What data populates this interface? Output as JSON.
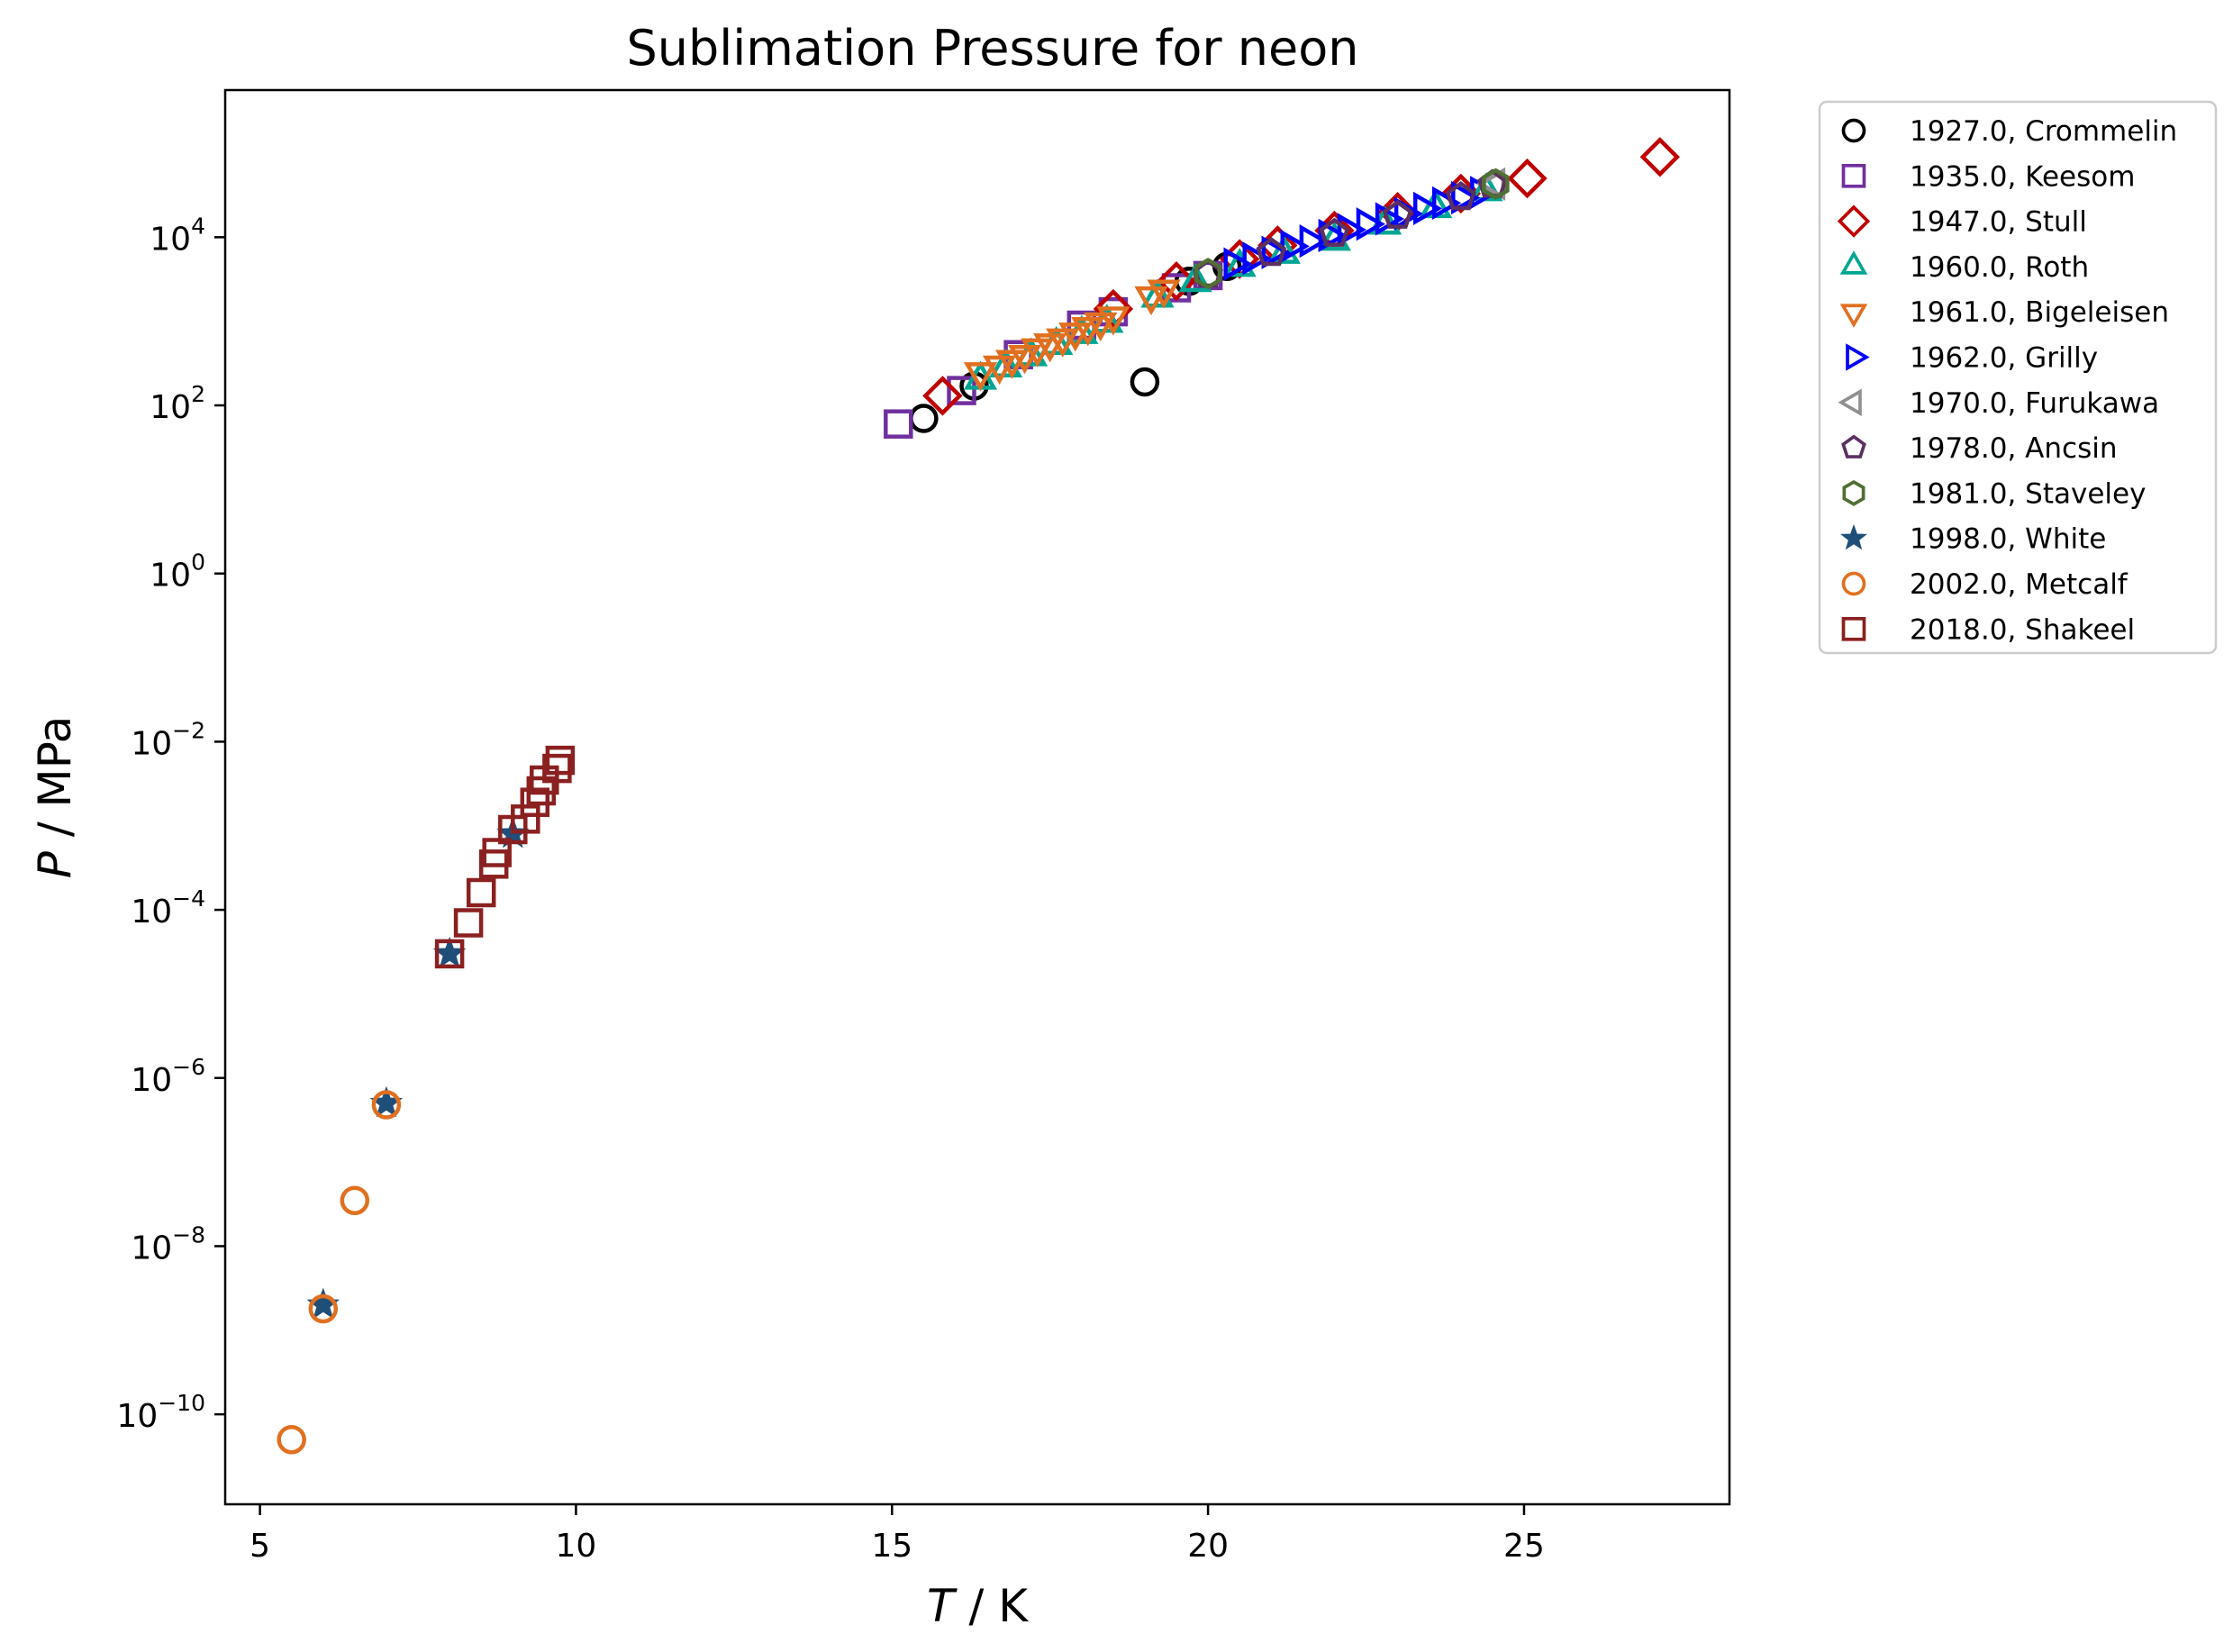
{
  "chart_data": {
    "type": "scatter",
    "title": "Sublimation Pressure for neon",
    "xlabel_var": "T",
    "xlabel_unit": " / K",
    "ylabel_var": "P",
    "ylabel_unit": " / MPa",
    "xlim": [
      4.45,
      28.25
    ],
    "ylim_exponent": [
      -11.07,
      5.75
    ],
    "yscale": "log",
    "grid": false,
    "legend_position": "outside-right",
    "x_ticks": [
      5,
      10,
      15,
      20,
      25
    ],
    "x_tick_labels": [
      "5",
      "10",
      "15",
      "20",
      "25"
    ],
    "y_ticks": [
      -10,
      -8,
      -6,
      -4,
      -2,
      0,
      2,
      4
    ],
    "y_tick_labels": [
      {
        "base": "10",
        "exp": "−10"
      },
      {
        "base": "10",
        "exp": "−8"
      },
      {
        "base": "10",
        "exp": "−6"
      },
      {
        "base": "10",
        "exp": "−4"
      },
      {
        "base": "10",
        "exp": "−2"
      },
      {
        "base": "10",
        "exp": "0"
      },
      {
        "base": "10",
        "exp": "2"
      },
      {
        "base": "10",
        "exp": "4"
      }
    ],
    "series": [
      {
        "name": "1927.0, Crommelin",
        "marker": "circle",
        "color": "#000000",
        "points": [
          [
            15.5,
            70
          ],
          [
            16.3,
            170
          ],
          [
            19.0,
            190
          ],
          [
            19.7,
            3000
          ],
          [
            20.3,
            4500
          ]
        ]
      },
      {
        "name": "1935.0, Keesom",
        "marker": "square",
        "color": "#7030a0",
        "points": [
          [
            15.1,
            60
          ],
          [
            16.1,
            150
          ],
          [
            17.0,
            400
          ],
          [
            18.0,
            900
          ],
          [
            18.5,
            1300
          ],
          [
            19.5,
            2500
          ],
          [
            20.0,
            3500
          ]
        ]
      },
      {
        "name": "1947.0, Stull",
        "marker": "diamond",
        "color": "#c00000",
        "points": [
          [
            15.8,
            130
          ],
          [
            18.5,
            1400
          ],
          [
            19.5,
            3000
          ],
          [
            20.5,
            5500
          ],
          [
            21.1,
            8000
          ],
          [
            22.0,
            12000
          ],
          [
            23.0,
            20000
          ],
          [
            24.0,
            33000
          ],
          [
            25.05,
            50000
          ],
          [
            27.15,
            90000
          ]
        ]
      },
      {
        "name": "1960.0, Roth",
        "marker": "triangle-up",
        "color": "#00a693",
        "points": [
          [
            16.4,
            200
          ],
          [
            16.8,
            280
          ],
          [
            17.2,
            380
          ],
          [
            17.6,
            520
          ],
          [
            18.0,
            700
          ],
          [
            18.4,
            950
          ],
          [
            19.2,
            1900
          ],
          [
            19.8,
            2900
          ],
          [
            20.5,
            4400
          ],
          [
            21.2,
            6300
          ],
          [
            22.0,
            9000
          ],
          [
            22.8,
            14000
          ],
          [
            23.6,
            22000
          ],
          [
            24.4,
            35000
          ]
        ]
      },
      {
        "name": "1961.0, Bigeleisen",
        "marker": "triangle-down",
        "color": "#e07020",
        "points": [
          [
            16.4,
            250
          ],
          [
            16.7,
            300
          ],
          [
            16.9,
            350
          ],
          [
            17.1,
            400
          ],
          [
            17.3,
            480
          ],
          [
            17.5,
            550
          ],
          [
            17.7,
            630
          ],
          [
            17.9,
            740
          ],
          [
            18.1,
            860
          ],
          [
            18.3,
            980
          ],
          [
            18.5,
            1150
          ],
          [
            19.1,
            2000
          ],
          [
            19.3,
            2400
          ]
        ]
      },
      {
        "name": "1962.0, Grilly",
        "marker": "triangle-right",
        "color": "#0000ff",
        "points": [
          [
            20.4,
            4800
          ],
          [
            20.7,
            5600
          ],
          [
            21.0,
            6600
          ],
          [
            21.3,
            7800
          ],
          [
            21.6,
            9000
          ],
          [
            21.9,
            10500
          ],
          [
            22.2,
            12300
          ],
          [
            22.5,
            14300
          ],
          [
            22.8,
            16500
          ],
          [
            23.1,
            19000
          ],
          [
            23.4,
            22000
          ],
          [
            23.7,
            25500
          ],
          [
            24.0,
            29500
          ],
          [
            24.3,
            34000
          ]
        ]
      },
      {
        "name": "1970.0, Furukawa",
        "marker": "triangle-left",
        "color": "#909090",
        "points": [
          [
            24.55,
            43000
          ]
        ]
      },
      {
        "name": "1978.0, Ancsin",
        "marker": "pentagon",
        "color": "#5c3060",
        "points": [
          [
            20.0,
            3600
          ],
          [
            21.0,
            6500
          ],
          [
            22.0,
            11000
          ],
          [
            23.0,
            18000
          ],
          [
            24.0,
            30000
          ],
          [
            24.5,
            42000
          ]
        ]
      },
      {
        "name": "1981.0, Staveley",
        "marker": "hexagon",
        "color": "#4f7032",
        "points": [
          [
            20.0,
            3700
          ],
          [
            24.55,
            43000
          ]
        ]
      },
      {
        "name": "1998.0, White",
        "marker": "star",
        "color": "#1f4e79",
        "points": [
          [
            6.0,
            2e-09
          ],
          [
            7.0,
            5e-07
          ],
          [
            8.0,
            3e-05
          ],
          [
            9.0,
            0.0008
          ]
        ]
      },
      {
        "name": "2002.0, Metcalf",
        "marker": "circle",
        "color": "#e07020",
        "points": [
          [
            5.5,
            5e-11
          ],
          [
            6.0,
            1.8e-09
          ],
          [
            6.5,
            3.5e-08
          ],
          [
            7.0,
            4.8e-07
          ]
        ]
      },
      {
        "name": "2018.0, Shakeel",
        "marker": "square",
        "color": "#8b2020",
        "points": [
          [
            8.0,
            3e-05
          ],
          [
            8.3,
            7e-05
          ],
          [
            8.5,
            0.00016
          ],
          [
            8.7,
            0.00035
          ],
          [
            8.75,
            0.00048
          ],
          [
            9.0,
            0.0009
          ],
          [
            9.2,
            0.0012
          ],
          [
            9.35,
            0.0019
          ],
          [
            9.45,
            0.0026
          ],
          [
            9.5,
            0.0035
          ],
          [
            9.7,
            0.0048
          ],
          [
            9.75,
            0.006
          ]
        ]
      }
    ]
  }
}
